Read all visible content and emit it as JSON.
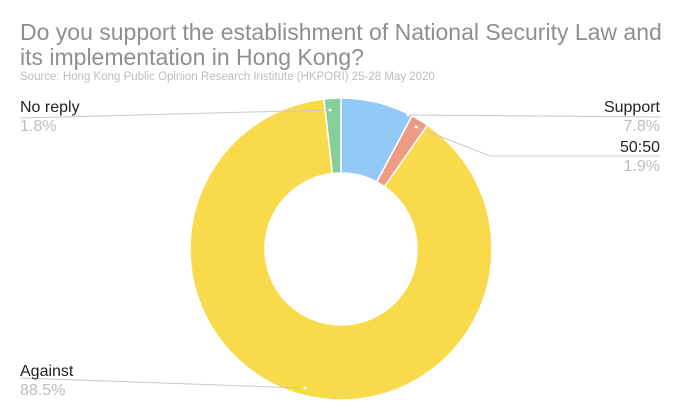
{
  "chart_data": {
    "type": "pie",
    "variant": "donut",
    "title": "Do you support the establishment of National Security Law and its implementation in Hong Kong?",
    "subtitle": "Source: Hong Kong Public Opinion Research Institute (HKPORI) 25-28 May 2020",
    "slices": [
      {
        "label": "Support",
        "value": 7.8,
        "value_label": "7.8%",
        "color": "#92c9f6"
      },
      {
        "label": "50:50",
        "value": 1.9,
        "value_label": "1.9%",
        "color": "#ef9a82"
      },
      {
        "label": "Against",
        "value": 88.5,
        "value_label": "88.5%",
        "color": "#f9da4b"
      },
      {
        "label": "No reply",
        "value": 1.8,
        "value_label": "1.8%",
        "color": "#86ce9a"
      }
    ]
  }
}
